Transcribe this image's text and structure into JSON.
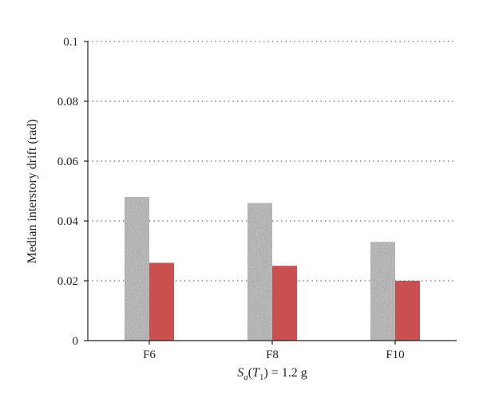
{
  "chart_data": {
    "type": "bar",
    "categories": [
      "F6",
      "F8",
      "F10"
    ],
    "series": [
      {
        "values": [
          0.048,
          0.046,
          0.033
        ],
        "color": "#a0a0a0",
        "pattern": "speckled-gray"
      },
      {
        "values": [
          0.026,
          0.025,
          0.02
        ],
        "color": "#c9504f",
        "pattern": "solid"
      }
    ],
    "ylabel": "Median interstory drift (rad)",
    "xlabel": {
      "S": "S",
      "sub_a": "a",
      "open": "(",
      "T": "T",
      "sub_1": "1",
      "rest": ") = 1.2 g"
    },
    "ylim": [
      0,
      0.1
    ],
    "yticks": [
      "0",
      "0.02",
      "0.04",
      "0.06",
      "0.08",
      "0.1"
    ],
    "ytick_values": [
      0,
      0.02,
      0.04,
      0.06,
      0.08,
      0.1
    ],
    "grid": "dotted-horizontal",
    "legend": "none"
  }
}
